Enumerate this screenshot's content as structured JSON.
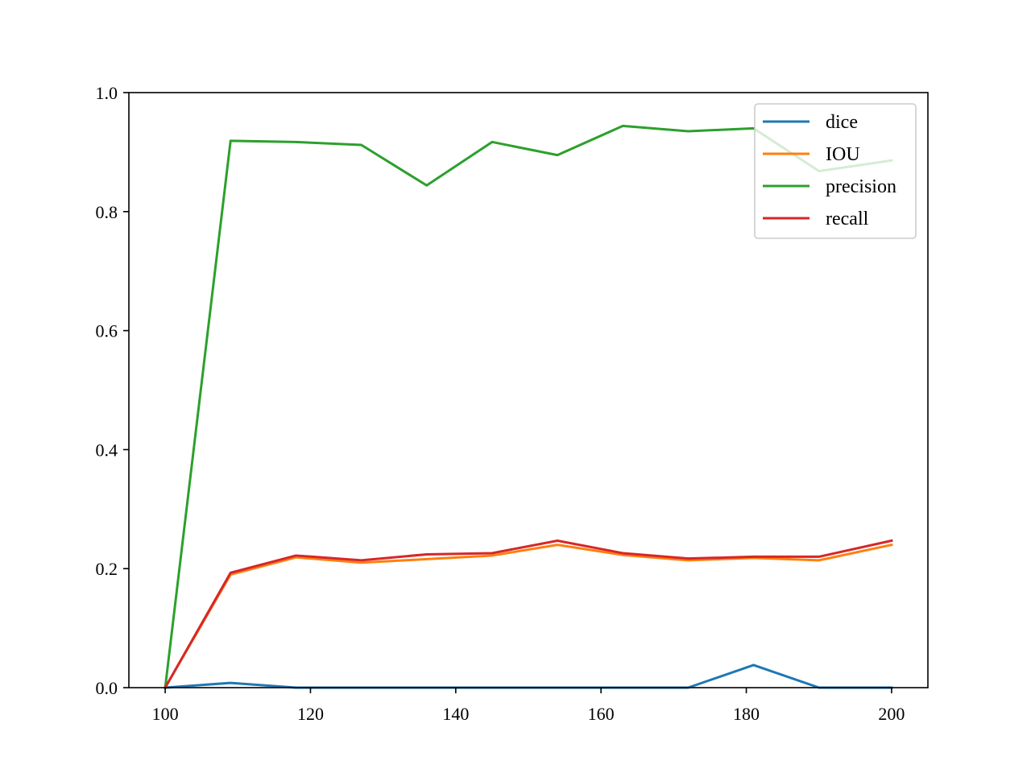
{
  "chart_data": {
    "type": "line",
    "title": "",
    "xlabel": "",
    "ylabel": "",
    "xlim": [
      95,
      205
    ],
    "ylim": [
      0,
      1.0
    ],
    "x_ticks": [
      100,
      120,
      140,
      160,
      180,
      200
    ],
    "x_tick_labels": [
      "100",
      "120",
      "140",
      "160",
      "180",
      "200"
    ],
    "y_ticks": [
      0,
      0.2,
      0.4,
      0.6,
      0.8,
      1.0
    ],
    "y_tick_labels": [
      "0.0",
      "0.2",
      "0.4",
      "0.6",
      "0.8",
      "1.0"
    ],
    "grid": false,
    "legend_position": "upper right",
    "x": [
      100,
      109,
      118,
      127,
      136,
      145,
      154,
      163,
      172,
      181,
      190,
      200
    ],
    "series": [
      {
        "name": "dice",
        "color": "#1f77b4",
        "values": [
          0.0,
          0.008,
          0.0,
          0.0,
          0.0,
          0.0,
          0.0,
          0.0,
          0.0,
          0.038,
          0.0,
          0.0
        ]
      },
      {
        "name": "IOU",
        "color": "#ff7f0e",
        "values": [
          0.0,
          0.19,
          0.219,
          0.21,
          0.216,
          0.222,
          0.24,
          0.223,
          0.214,
          0.218,
          0.214,
          0.24
        ]
      },
      {
        "name": "precision",
        "color": "#2ca02c",
        "values": [
          0.0,
          0.919,
          0.917,
          0.912,
          0.844,
          0.917,
          0.895,
          0.944,
          0.935,
          0.94,
          0.868,
          0.886
        ]
      },
      {
        "name": "recall",
        "color": "#d62728",
        "values": [
          0.0,
          0.193,
          0.222,
          0.214,
          0.224,
          0.226,
          0.247,
          0.226,
          0.217,
          0.22,
          0.22,
          0.247
        ]
      }
    ]
  }
}
